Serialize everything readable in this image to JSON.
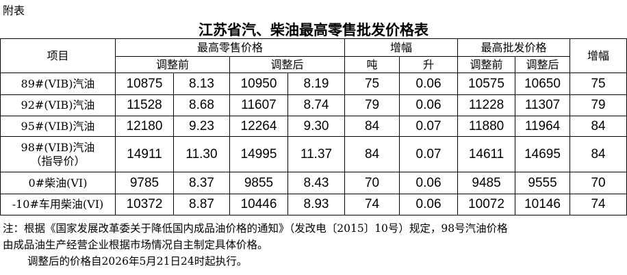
{
  "header": {
    "appendix": "附表",
    "title": "江苏省汽、柴油最高零售批发价格表"
  },
  "table": {
    "head": {
      "item": "项目",
      "retail": "最高零售价格",
      "change": "增幅",
      "wholesale": "最高批发价格",
      "wholesale_change": "增幅",
      "before": "调整前",
      "after": "调整后",
      "ton": "吨",
      "liter": "升",
      "wholesale_before": "调整前",
      "wholesale_after": "调整后"
    },
    "rows": [
      {
        "item": [
          "89#(VIB)汽油"
        ],
        "values": [
          "10875",
          "8.13",
          "10950",
          "8.19",
          "75",
          "0.06",
          "10575",
          "10650",
          "75"
        ]
      },
      {
        "item": [
          "92#(VIB)汽油"
        ],
        "values": [
          "11528",
          "8.68",
          "11607",
          "8.74",
          "79",
          "0.06",
          "11228",
          "11307",
          "79"
        ]
      },
      {
        "item": [
          "95#(VIB)汽油"
        ],
        "values": [
          "12180",
          "9.23",
          "12264",
          "9.30",
          "84",
          "0.07",
          "11880",
          "11964",
          "84"
        ]
      },
      {
        "item": [
          "98#(VIB)汽油",
          "（指导价）"
        ],
        "values": [
          "14911",
          "11.30",
          "14995",
          "11.37",
          "84",
          "0.07",
          "14611",
          "14695",
          "84"
        ]
      },
      {
        "item": [
          "0#柴油(VI)"
        ],
        "values": [
          "9785",
          "8.37",
          "9855",
          "8.43",
          "70",
          "0.06",
          "9485",
          "9555",
          "70"
        ]
      },
      {
        "item": [
          "-10#车用柴油(VI)"
        ],
        "values": [
          "10372",
          "8.87",
          "10446",
          "8.93",
          "74",
          "0.06",
          "10072",
          "10146",
          "74"
        ]
      }
    ]
  },
  "notes": [
    "注：根据《国家发展改革委关于降低国内成品油价格的通知》（发改电〔2015〕10号）规定，98号汽油价格",
    "由成品油生产经营企业根据市场情况自主制定具体价格。",
    "调整后的价格自2026年5月21日24时起执行。"
  ]
}
